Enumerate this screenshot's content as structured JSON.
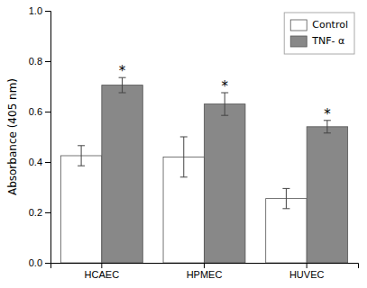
{
  "chart_data": {
    "type": "bar",
    "categories": [
      "HCAEC",
      "HPMEC",
      "HUVEC"
    ],
    "series": [
      {
        "name": "Control",
        "color": "#ffffff",
        "values": [
          0.425,
          0.42,
          0.255
        ],
        "errors": [
          0.04,
          0.08,
          0.04
        ]
      },
      {
        "name": "TNF- α",
        "color": "#888888",
        "values": [
          0.705,
          0.63,
          0.54
        ],
        "errors": [
          0.03,
          0.045,
          0.025
        ],
        "annotations": [
          "*",
          "*",
          "*"
        ]
      }
    ],
    "y_label": "Absorbance (405 nm)",
    "ylim": [
      0.0,
      1.0
    ],
    "yticks": [
      {
        "value": 0,
        "label": "0.0"
      },
      0.2,
      0.4,
      0.6,
      0.8,
      {
        "value": 1,
        "label": "1.0"
      }
    ],
    "grid": false,
    "legend": "upper right"
  }
}
